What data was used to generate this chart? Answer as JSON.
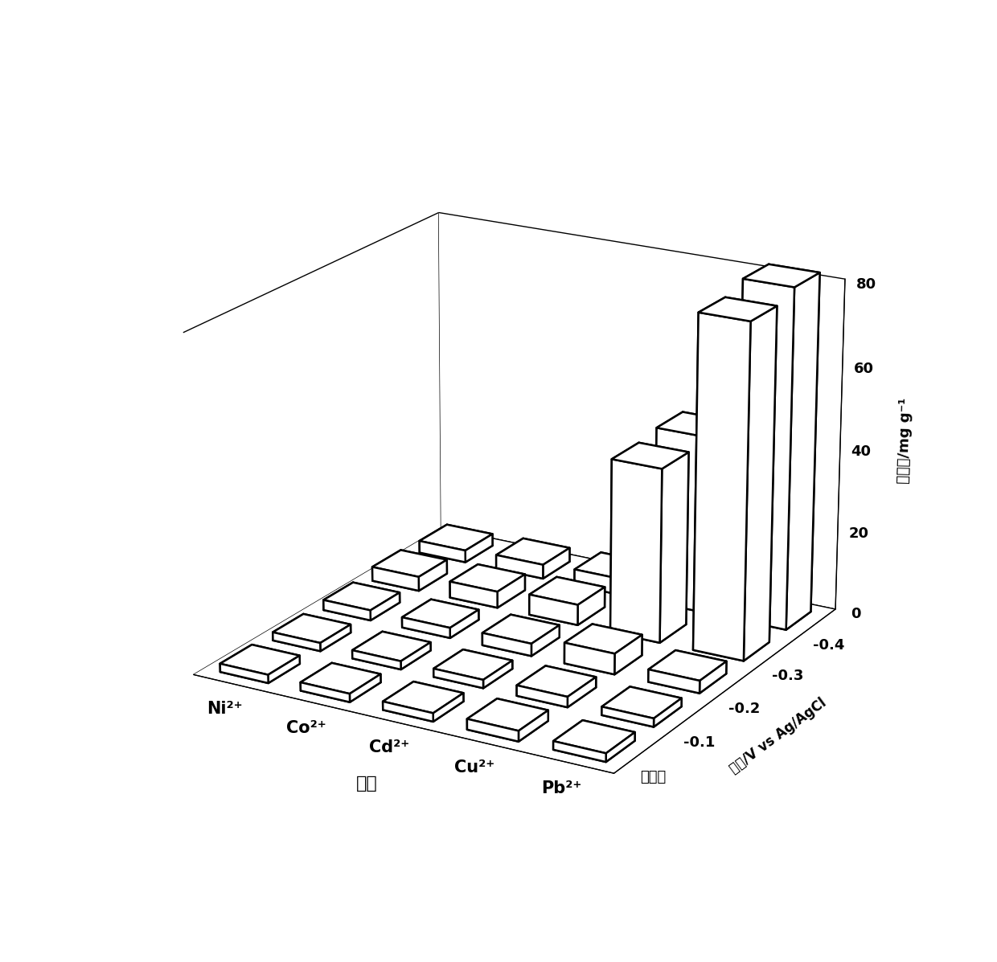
{
  "elements": [
    "Ni²⁺",
    "Co²⁺",
    "Cd²⁺",
    "Cu²⁺",
    "Pb²⁺"
  ],
  "voltages": [
    "无电压",
    "-0.1",
    "-0.2",
    "-0.3",
    "-0.4"
  ],
  "voltage_label": "电压/V vs Ag/AgCl",
  "element_label": "元素",
  "z_label": "吸附量/mg g⁻¹",
  "zlim": [
    0,
    80
  ],
  "zticks": [
    0,
    20,
    40,
    60,
    80
  ],
  "values_by_element_voltage": {
    "comment": "rows=element index(Ni=0,Co=1,Cd=2,Cu=3,Pb=4), cols=voltage(无=0,-0.1=1,-0.2=2,-0.3=3,-0.4=4)",
    "data": [
      [
        2.0,
        2.0,
        2.5,
        3.5,
        3.0
      ],
      [
        2.0,
        2.0,
        2.5,
        4.0,
        3.5
      ],
      [
        2.0,
        2.0,
        3.0,
        5.0,
        4.0
      ],
      [
        2.5,
        2.5,
        5.0,
        42.0,
        43.0
      ],
      [
        2.0,
        2.0,
        3.0,
        80.0,
        82.0
      ]
    ]
  },
  "bar_color": "#ffffff",
  "bar_edge_color": "#000000",
  "background_color": "#ffffff",
  "figsize": [
    12.4,
    11.97
  ],
  "dpi": 100,
  "elev": 20,
  "azim": -60
}
